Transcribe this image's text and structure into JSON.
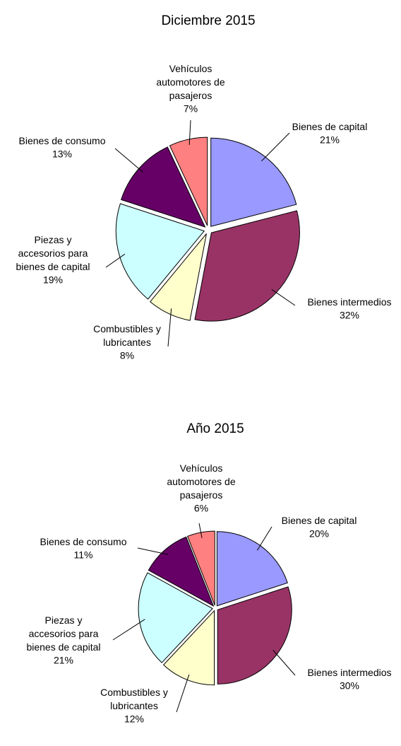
{
  "chart_data": [
    {
      "type": "pie",
      "title": "Diciembre 2015",
      "categories": [
        "Bienes de capital",
        "Bienes intermedios",
        "Combustibles y\nlubricantes",
        "Piezas y\naccesorios para\nbienes de capital",
        "Bienes de consumo",
        "Vehículos\nautomotores de\npasajeros"
      ],
      "values": [
        21,
        32,
        8,
        19,
        13,
        7
      ],
      "value_labels": [
        "21%",
        "32%",
        "8%",
        "19%",
        "13%",
        "7%"
      ],
      "colors": [
        "#9999ff",
        "#993366",
        "#ffffcc",
        "#ccffff",
        "#660066",
        "#ff8080"
      ]
    },
    {
      "type": "pie",
      "title": "Año 2015",
      "categories": [
        "Bienes de capital",
        "Bienes intermedios",
        "Combustibles y\nlubricantes",
        "Piezas y\naccesorios para\nbienes de capital",
        "Bienes de consumo",
        "Vehículos\nautomotores de\npasajeros"
      ],
      "values": [
        20,
        30,
        12,
        21,
        11,
        6
      ],
      "value_labels": [
        "20%",
        "30%",
        "12%",
        "21%",
        "11%",
        "6%"
      ],
      "colors": [
        "#9999ff",
        "#993366",
        "#ffffcc",
        "#ccffff",
        "#660066",
        "#ff8080"
      ]
    }
  ]
}
